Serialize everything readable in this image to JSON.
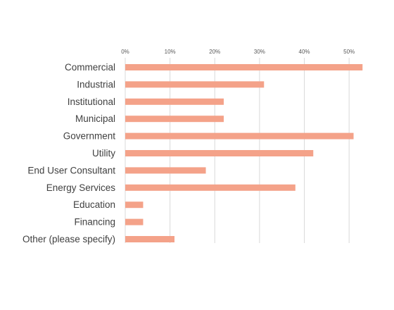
{
  "chart_data": {
    "type": "bar",
    "orientation": "horizontal",
    "categories": [
      "Commercial",
      "Industrial",
      "Institutional",
      "Municipal",
      "Government",
      "Utility",
      "End User Consultant",
      "Energy Services",
      "Education",
      "Financing",
      "Other (please specify)"
    ],
    "values": [
      53,
      31,
      22,
      22,
      51,
      42,
      18,
      38,
      4,
      4,
      11
    ],
    "xlim": [
      0,
      55
    ],
    "x_ticks": [
      0,
      10,
      20,
      30,
      40,
      50
    ],
    "x_tick_labels": [
      "0%",
      "10%",
      "20%",
      "30%",
      "40%",
      "50%"
    ],
    "x_axis_position": "top",
    "grid": "vertical",
    "bar_color": "#F4A289",
    "grid_color": "#D9D9D9"
  }
}
